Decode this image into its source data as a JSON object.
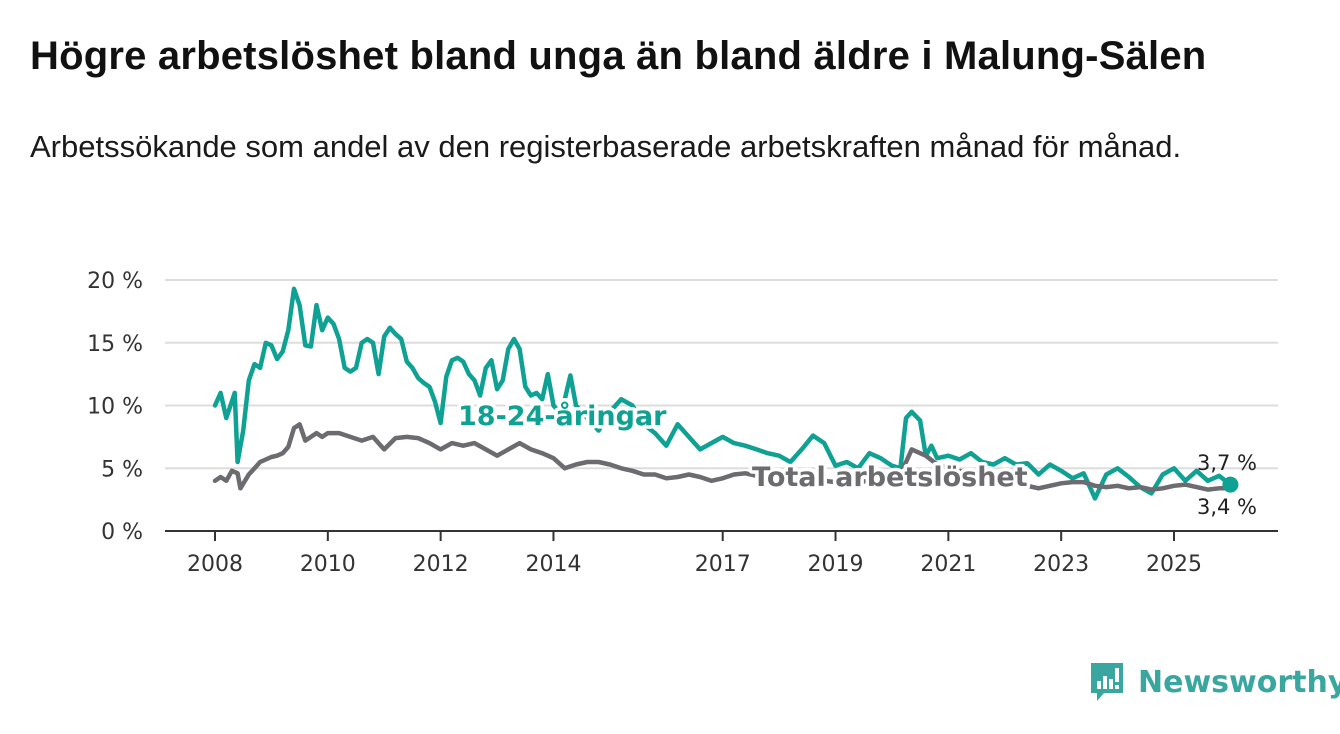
{
  "header": {
    "title": "Högre arbetslöshet bland unga än bland äldre i Malung-Sälen",
    "subtitle": "Arbetssökande som andel av den registerbaserade arbetskraften månad för månad."
  },
  "brand": {
    "name": "Newsworthy"
  },
  "colors": {
    "youth": "#0fa193",
    "total": "#6b6b70",
    "grid": "#dddddd",
    "axis": "#333333"
  },
  "chart_data": {
    "type": "line",
    "title": "Högre arbetslöshet bland unga än bland äldre i Malung-Sälen",
    "xlabel": "",
    "ylabel": "",
    "ylim": [
      0,
      20
    ],
    "xlim": [
      2008,
      2026.2
    ],
    "yticks": [
      0,
      5,
      10,
      15,
      20
    ],
    "ytick_labels": [
      "0 %",
      "5 %",
      "10 %",
      "15 %",
      "20 %"
    ],
    "xticks": [
      2008,
      2010,
      2012,
      2014,
      2017,
      2019,
      2021,
      2023,
      2025
    ],
    "xtick_labels": [
      "2008",
      "2010",
      "2012",
      "2014",
      "2017",
      "2019",
      "2021",
      "2023",
      "2025"
    ],
    "series": [
      {
        "name": "18-24-åringar",
        "label": "18-24-åringar",
        "end_label": "3,7 %",
        "points": [
          [
            2008.0,
            10.0
          ],
          [
            2008.1,
            11.0
          ],
          [
            2008.2,
            9.0
          ],
          [
            2008.35,
            11.0
          ],
          [
            2008.4,
            5.5
          ],
          [
            2008.5,
            8.0
          ],
          [
            2008.6,
            12.0
          ],
          [
            2008.7,
            13.3
          ],
          [
            2008.8,
            13.0
          ],
          [
            2008.9,
            15.0
          ],
          [
            2009.0,
            14.8
          ],
          [
            2009.1,
            13.7
          ],
          [
            2009.2,
            14.3
          ],
          [
            2009.3,
            16.0
          ],
          [
            2009.4,
            19.3
          ],
          [
            2009.5,
            18.0
          ],
          [
            2009.6,
            14.8
          ],
          [
            2009.7,
            14.7
          ],
          [
            2009.8,
            18.0
          ],
          [
            2009.9,
            16.0
          ],
          [
            2010.0,
            17.0
          ],
          [
            2010.1,
            16.5
          ],
          [
            2010.2,
            15.3
          ],
          [
            2010.3,
            13.0
          ],
          [
            2010.4,
            12.7
          ],
          [
            2010.5,
            13.0
          ],
          [
            2010.6,
            15.0
          ],
          [
            2010.7,
            15.3
          ],
          [
            2010.8,
            15.0
          ],
          [
            2010.9,
            12.5
          ],
          [
            2011.0,
            15.5
          ],
          [
            2011.1,
            16.2
          ],
          [
            2011.2,
            15.7
          ],
          [
            2011.3,
            15.3
          ],
          [
            2011.4,
            13.5
          ],
          [
            2011.5,
            13.0
          ],
          [
            2011.6,
            12.2
          ],
          [
            2011.7,
            11.8
          ],
          [
            2011.8,
            11.5
          ],
          [
            2011.9,
            10.3
          ],
          [
            2012.0,
            8.6
          ],
          [
            2012.1,
            12.3
          ],
          [
            2012.2,
            13.6
          ],
          [
            2012.3,
            13.8
          ],
          [
            2012.4,
            13.5
          ],
          [
            2012.5,
            12.5
          ],
          [
            2012.6,
            12.0
          ],
          [
            2012.7,
            10.8
          ],
          [
            2012.8,
            13.0
          ],
          [
            2012.9,
            13.6
          ],
          [
            2013.0,
            11.3
          ],
          [
            2013.1,
            12.0
          ],
          [
            2013.2,
            14.5
          ],
          [
            2013.3,
            15.3
          ],
          [
            2013.4,
            14.5
          ],
          [
            2013.5,
            11.5
          ],
          [
            2013.6,
            10.8
          ],
          [
            2013.7,
            11.0
          ],
          [
            2013.8,
            10.5
          ],
          [
            2013.9,
            12.5
          ],
          [
            2014.0,
            10.0
          ],
          [
            2014.1,
            9.5
          ],
          [
            2014.2,
            10.5
          ],
          [
            2014.3,
            12.4
          ],
          [
            2014.4,
            10.0
          ],
          [
            2014.6,
            9.0
          ],
          [
            2014.8,
            8.0
          ],
          [
            2015.0,
            9.5
          ],
          [
            2015.2,
            10.5
          ],
          [
            2015.4,
            10.0
          ],
          [
            2015.6,
            8.5
          ],
          [
            2015.8,
            7.8
          ],
          [
            2016.0,
            6.8
          ],
          [
            2016.2,
            8.5
          ],
          [
            2016.4,
            7.5
          ],
          [
            2016.6,
            6.5
          ],
          [
            2016.8,
            7.0
          ],
          [
            2017.0,
            7.5
          ],
          [
            2017.2,
            7.0
          ],
          [
            2017.4,
            6.8
          ],
          [
            2017.6,
            6.5
          ],
          [
            2017.8,
            6.2
          ],
          [
            2018.0,
            6.0
          ],
          [
            2018.2,
            5.5
          ],
          [
            2018.4,
            6.5
          ],
          [
            2018.6,
            7.6
          ],
          [
            2018.8,
            7.0
          ],
          [
            2019.0,
            5.2
          ],
          [
            2019.2,
            5.5
          ],
          [
            2019.4,
            5.0
          ],
          [
            2019.6,
            6.2
          ],
          [
            2019.8,
            5.8
          ],
          [
            2020.0,
            5.2
          ],
          [
            2020.15,
            5.0
          ],
          [
            2020.25,
            9.0
          ],
          [
            2020.35,
            9.5
          ],
          [
            2020.5,
            8.8
          ],
          [
            2020.6,
            6.0
          ],
          [
            2020.7,
            6.8
          ],
          [
            2020.8,
            5.8
          ],
          [
            2021.0,
            6.0
          ],
          [
            2021.2,
            5.7
          ],
          [
            2021.4,
            6.2
          ],
          [
            2021.6,
            5.5
          ],
          [
            2021.8,
            5.3
          ],
          [
            2022.0,
            5.8
          ],
          [
            2022.2,
            5.3
          ],
          [
            2022.4,
            5.4
          ],
          [
            2022.6,
            4.5
          ],
          [
            2022.8,
            5.3
          ],
          [
            2023.0,
            4.8
          ],
          [
            2023.2,
            4.2
          ],
          [
            2023.4,
            4.6
          ],
          [
            2023.6,
            2.6
          ],
          [
            2023.8,
            4.5
          ],
          [
            2024.0,
            5.0
          ],
          [
            2024.2,
            4.3
          ],
          [
            2024.4,
            3.5
          ],
          [
            2024.6,
            3.0
          ],
          [
            2024.8,
            4.5
          ],
          [
            2025.0,
            5.0
          ],
          [
            2025.2,
            4.0
          ],
          [
            2025.4,
            4.8
          ],
          [
            2025.6,
            4.0
          ],
          [
            2025.8,
            4.4
          ],
          [
            2026.0,
            3.7
          ]
        ]
      },
      {
        "name": "Total arbetslöshet",
        "label": "Total arbetslöshet",
        "end_label": "3,4 %",
        "points": [
          [
            2008.0,
            4.0
          ],
          [
            2008.1,
            4.3
          ],
          [
            2008.2,
            4.0
          ],
          [
            2008.3,
            4.8
          ],
          [
            2008.4,
            4.6
          ],
          [
            2008.45,
            3.4
          ],
          [
            2008.6,
            4.5
          ],
          [
            2008.7,
            5.0
          ],
          [
            2008.8,
            5.5
          ],
          [
            2008.9,
            5.7
          ],
          [
            2009.0,
            5.9
          ],
          [
            2009.1,
            6.0
          ],
          [
            2009.2,
            6.2
          ],
          [
            2009.3,
            6.7
          ],
          [
            2009.4,
            8.2
          ],
          [
            2009.5,
            8.5
          ],
          [
            2009.6,
            7.2
          ],
          [
            2009.7,
            7.5
          ],
          [
            2009.8,
            7.8
          ],
          [
            2009.9,
            7.5
          ],
          [
            2010.0,
            7.8
          ],
          [
            2010.2,
            7.8
          ],
          [
            2010.4,
            7.5
          ],
          [
            2010.6,
            7.2
          ],
          [
            2010.8,
            7.5
          ],
          [
            2011.0,
            6.5
          ],
          [
            2011.2,
            7.4
          ],
          [
            2011.4,
            7.5
          ],
          [
            2011.6,
            7.4
          ],
          [
            2011.8,
            7.0
          ],
          [
            2012.0,
            6.5
          ],
          [
            2012.2,
            7.0
          ],
          [
            2012.4,
            6.8
          ],
          [
            2012.6,
            7.0
          ],
          [
            2012.8,
            6.5
          ],
          [
            2013.0,
            6.0
          ],
          [
            2013.2,
            6.5
          ],
          [
            2013.4,
            7.0
          ],
          [
            2013.6,
            6.5
          ],
          [
            2013.8,
            6.2
          ],
          [
            2014.0,
            5.8
          ],
          [
            2014.2,
            5.0
          ],
          [
            2014.4,
            5.3
          ],
          [
            2014.6,
            5.5
          ],
          [
            2014.8,
            5.5
          ],
          [
            2015.0,
            5.3
          ],
          [
            2015.2,
            5.0
          ],
          [
            2015.4,
            4.8
          ],
          [
            2015.6,
            4.5
          ],
          [
            2015.8,
            4.5
          ],
          [
            2016.0,
            4.2
          ],
          [
            2016.2,
            4.3
          ],
          [
            2016.4,
            4.5
          ],
          [
            2016.6,
            4.3
          ],
          [
            2016.8,
            4.0
          ],
          [
            2017.0,
            4.2
          ],
          [
            2017.2,
            4.5
          ],
          [
            2017.4,
            4.6
          ],
          [
            2017.6,
            4.4
          ],
          [
            2017.8,
            4.3
          ],
          [
            2018.0,
            4.2
          ],
          [
            2018.2,
            4.1
          ],
          [
            2018.4,
            4.0
          ],
          [
            2018.6,
            4.2
          ],
          [
            2018.8,
            4.0
          ],
          [
            2019.0,
            3.9
          ],
          [
            2019.2,
            4.0
          ],
          [
            2019.4,
            3.9
          ],
          [
            2019.6,
            4.0
          ],
          [
            2019.8,
            4.2
          ],
          [
            2020.0,
            4.3
          ],
          [
            2020.2,
            5.0
          ],
          [
            2020.35,
            6.5
          ],
          [
            2020.6,
            6.0
          ],
          [
            2020.8,
            5.3
          ],
          [
            2021.0,
            5.0
          ],
          [
            2021.2,
            4.8
          ],
          [
            2021.4,
            4.5
          ],
          [
            2021.6,
            4.4
          ],
          [
            2021.8,
            4.2
          ],
          [
            2022.0,
            4.0
          ],
          [
            2022.2,
            3.9
          ],
          [
            2022.4,
            3.6
          ],
          [
            2022.6,
            3.4
          ],
          [
            2022.8,
            3.6
          ],
          [
            2023.0,
            3.8
          ],
          [
            2023.2,
            3.9
          ],
          [
            2023.4,
            3.9
          ],
          [
            2023.6,
            3.6
          ],
          [
            2023.8,
            3.5
          ],
          [
            2024.0,
            3.6
          ],
          [
            2024.2,
            3.4
          ],
          [
            2024.4,
            3.5
          ],
          [
            2024.6,
            3.3
          ],
          [
            2024.8,
            3.4
          ],
          [
            2025.0,
            3.6
          ],
          [
            2025.2,
            3.7
          ],
          [
            2025.4,
            3.5
          ],
          [
            2025.6,
            3.3
          ],
          [
            2025.8,
            3.4
          ],
          [
            2026.0,
            3.4
          ]
        ]
      }
    ]
  }
}
